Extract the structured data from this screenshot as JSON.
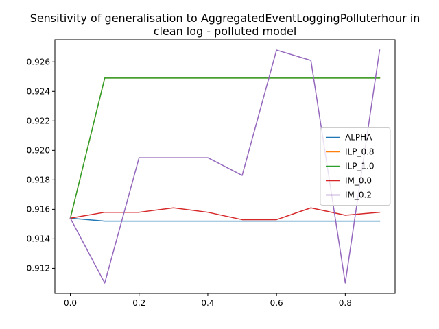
{
  "chart_data": {
    "type": "line",
    "title_line1": "Sensitivity of generalisation to AggregatedEventLoggingPolluterhour in",
    "title_line2": "clean log - polluted model",
    "xlabel": "",
    "ylabel": "",
    "x": [
      0.0,
      0.1,
      0.2,
      0.3,
      0.4,
      0.5,
      0.6,
      0.7,
      0.8,
      0.9
    ],
    "xlim": [
      -0.045,
      0.945
    ],
    "ylim": [
      0.9103,
      0.9275
    ],
    "xticks": [
      "0.0",
      "0.2",
      "0.4",
      "0.6",
      "0.8"
    ],
    "xtick_values": [
      0.0,
      0.2,
      0.4,
      0.6,
      0.8
    ],
    "yticks": [
      "0.912",
      "0.914",
      "0.916",
      "0.918",
      "0.920",
      "0.922",
      "0.924",
      "0.926"
    ],
    "ytick_values": [
      0.912,
      0.914,
      0.916,
      0.918,
      0.92,
      0.922,
      0.924,
      0.926
    ],
    "grid": false,
    "legend_position": "center-right",
    "series": [
      {
        "name": "ALPHA",
        "color": "#1f77b4",
        "values": [
          0.9154,
          0.9152,
          0.9152,
          0.9152,
          0.9152,
          0.9152,
          0.9152,
          0.9152,
          0.9152,
          0.9152
        ]
      },
      {
        "name": "ILP_0.8",
        "color": "#ff7f0e",
        "values": [
          0.9154,
          0.9249,
          0.9249,
          0.9249,
          0.9249,
          0.9249,
          0.9249,
          0.9249,
          0.9249,
          0.9249
        ]
      },
      {
        "name": "ILP_1.0",
        "color": "#2ca02c",
        "values": [
          0.9154,
          0.9249,
          0.9249,
          0.9249,
          0.9249,
          0.9249,
          0.9249,
          0.9249,
          0.9249,
          0.9249
        ]
      },
      {
        "name": "IM_0.0",
        "color": "#d62728",
        "values": [
          0.9154,
          0.9158,
          0.9158,
          0.9161,
          0.9158,
          0.9153,
          0.9153,
          0.9161,
          0.9156,
          0.9158
        ]
      },
      {
        "name": "IM_0.2",
        "color": "#9467bd",
        "values": [
          0.9154,
          0.911,
          0.9195,
          0.9195,
          0.9195,
          0.9183,
          0.9268,
          0.9261,
          0.911,
          0.9268
        ]
      }
    ]
  }
}
